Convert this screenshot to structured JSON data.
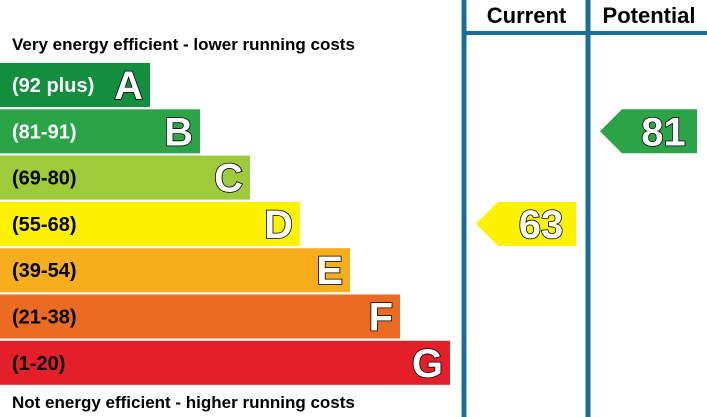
{
  "chart_data": {
    "type": "bar",
    "top_caption": "Very energy efficient - lower running costs",
    "bottom_caption": "Not energy efficient - higher running costs",
    "bands": [
      {
        "range": "(92 plus)",
        "letter": "A",
        "color": "#138d3e",
        "light_text": true
      },
      {
        "range": "(81-91)",
        "letter": "B",
        "color": "#2aa447",
        "light_text": true
      },
      {
        "range": "(69-80)",
        "letter": "C",
        "color": "#9ecb3b",
        "light_text": false
      },
      {
        "range": "(55-68)",
        "letter": "D",
        "color": "#fff200",
        "light_text": false
      },
      {
        "range": "(39-54)",
        "letter": "E",
        "color": "#f6ae1d",
        "light_text": false
      },
      {
        "range": "(21-38)",
        "letter": "F",
        "color": "#ec6b23",
        "light_text": false
      },
      {
        "range": "(1-20)",
        "letter": "G",
        "color": "#e3202a",
        "light_text": false
      }
    ],
    "columns": [
      {
        "label": "Current",
        "value": 63,
        "band": "D",
        "color": "#fff200"
      },
      {
        "label": "Potential",
        "value": 81,
        "band": "B",
        "color": "#2aa447"
      }
    ],
    "divider_color": "#1a6d98"
  }
}
